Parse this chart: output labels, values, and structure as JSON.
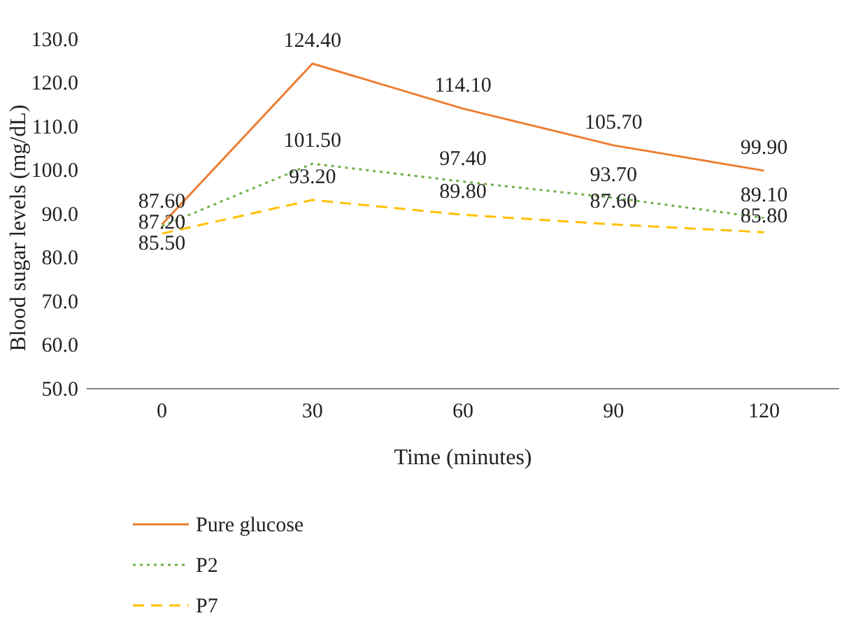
{
  "chart_data": {
    "type": "line",
    "xlabel": "Time (minutes)",
    "ylabel": "Blood sugar levels (mg/dL)",
    "categories": [
      "0",
      "30",
      "60",
      "90",
      "120"
    ],
    "series": [
      {
        "name": "Pure glucose",
        "color": "#ed7d31",
        "line_style": "solid",
        "values": [
          87.6,
          124.4,
          114.1,
          105.7,
          99.9
        ]
      },
      {
        "name": "P2",
        "color": "#70ad47",
        "line_style": "dotted",
        "values": [
          87.2,
          101.5,
          97.4,
          93.7,
          89.1
        ]
      },
      {
        "name": "P7",
        "color": "#ffc000",
        "line_style": "dashed",
        "values": [
          85.5,
          93.2,
          89.8,
          87.6,
          85.8
        ]
      }
    ],
    "ylim": [
      50,
      130
    ],
    "yticks": [
      {
        "value": 50,
        "label": "50.0"
      },
      {
        "value": 60,
        "label": "60.0"
      },
      {
        "value": 70,
        "label": "70.0"
      },
      {
        "value": 80,
        "label": "80.0"
      },
      {
        "value": 90,
        "label": "90.0"
      },
      {
        "value": 100,
        "label": "100.0"
      },
      {
        "value": 110,
        "label": "110.0"
      },
      {
        "value": 120,
        "label": "120.0"
      },
      {
        "value": 130,
        "label": "130.0"
      }
    ],
    "value_labels": [
      [
        "87.60",
        "124.40",
        "114.10",
        "105.70",
        "99.90"
      ],
      [
        "87.20",
        "101.50",
        "97.40",
        "93.70",
        "89.10"
      ],
      [
        "85.50",
        "93.20",
        "89.80",
        "87.60",
        "85.80"
      ]
    ],
    "legend": "bottom left",
    "grid": false,
    "marker": "none"
  }
}
